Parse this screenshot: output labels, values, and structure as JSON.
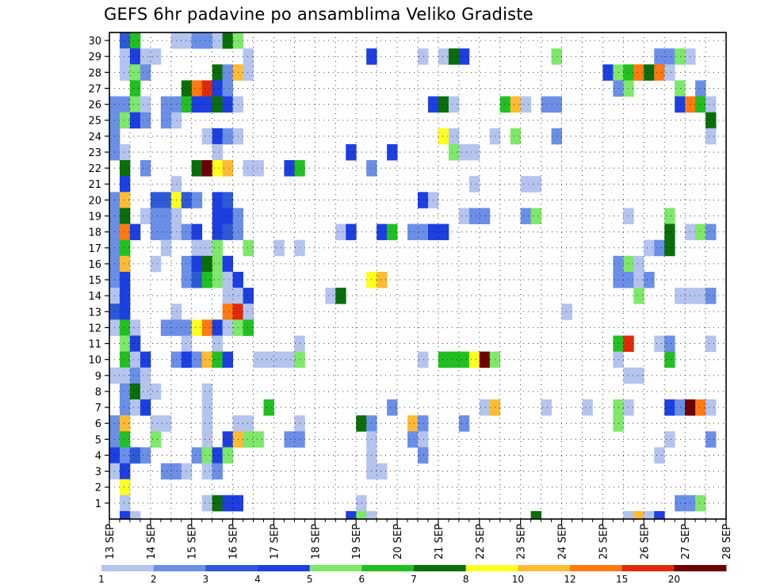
{
  "chart_data": {
    "type": "heatmap",
    "title": "GEFS 6hr padavine po ansamblima Veliko Gradiste",
    "xlabel": "",
    "ylabel": "",
    "x_axis": {
      "type": "time",
      "ticks": [
        "13 SEP",
        "14 SEP",
        "15 SEP",
        "16 SEP",
        "17 SEP",
        "18 SEP",
        "19 SEP",
        "20 SEP",
        "21 SEP",
        "22 SEP",
        "23 SEP",
        "24 SEP",
        "25 SEP",
        "26 SEP",
        "27 SEP",
        "28 SEP"
      ],
      "step_hours": 6
    },
    "y_axis": {
      "label": "",
      "range": [
        0,
        30
      ],
      "ticks": [
        1,
        2,
        3,
        4,
        5,
        6,
        7,
        8,
        9,
        10,
        11,
        12,
        13,
        14,
        15,
        16,
        17,
        18,
        19,
        20,
        21,
        22,
        23,
        24,
        25,
        26,
        27,
        28,
        29,
        30
      ]
    },
    "grid": true,
    "legend": {
      "position": "bottom",
      "labels": [
        "1",
        "2",
        "3",
        "4",
        "5",
        "6",
        "7",
        "8",
        "10",
        "12",
        "15",
        "20"
      ],
      "colors": [
        "#b4c4ee",
        "#6b8fe6",
        "#2f5ad6",
        "#1d3fe0",
        "#7ee86a",
        "#22bf22",
        "#0a6e0a",
        "#ffff22",
        "#ffbb33",
        "#ff7a11",
        "#e02a0a",
        "#6e0000"
      ]
    },
    "colors": [
      "#b4c4ee",
      "#6b8fe6",
      "#2f5ad6",
      "#1d3fe0",
      "#7ee86a",
      "#22bf22",
      "#0a6e0a",
      "#ffff22",
      "#ffbb33",
      "#ff7a11",
      "#e02a0a",
      "#6e0000"
    ],
    "cells": [
      [
        1,
        30,
        2
      ],
      [
        2,
        30,
        5
      ],
      [
        6,
        30,
        0
      ],
      [
        7,
        30,
        0
      ],
      [
        8,
        30,
        1
      ],
      [
        9,
        30,
        1
      ],
      [
        10,
        30,
        0
      ],
      [
        11,
        30,
        6
      ],
      [
        12,
        30,
        4
      ],
      [
        1,
        29,
        0
      ],
      [
        2,
        29,
        3
      ],
      [
        3,
        29,
        0
      ],
      [
        4,
        29,
        0
      ],
      [
        13,
        29,
        0
      ],
      [
        25,
        29,
        3
      ],
      [
        30,
        29,
        0
      ],
      [
        32,
        29,
        0
      ],
      [
        33,
        29,
        6
      ],
      [
        34,
        29,
        3
      ],
      [
        43,
        29,
        4
      ],
      [
        53,
        29,
        1
      ],
      [
        54,
        29,
        1
      ],
      [
        55,
        29,
        4
      ],
      [
        56,
        29,
        0
      ],
      [
        1,
        28,
        0
      ],
      [
        2,
        28,
        4
      ],
      [
        3,
        28,
        1
      ],
      [
        10,
        28,
        6
      ],
      [
        11,
        28,
        1
      ],
      [
        12,
        28,
        8
      ],
      [
        13,
        28,
        0
      ],
      [
        48,
        28,
        3
      ],
      [
        49,
        28,
        4
      ],
      [
        50,
        28,
        5
      ],
      [
        51,
        28,
        9
      ],
      [
        52,
        28,
        6
      ],
      [
        53,
        28,
        9
      ],
      [
        54,
        28,
        0
      ],
      [
        2,
        27,
        5
      ],
      [
        7,
        27,
        6
      ],
      [
        8,
        27,
        9
      ],
      [
        9,
        27,
        10
      ],
      [
        10,
        27,
        3
      ],
      [
        11,
        27,
        1
      ],
      [
        49,
        27,
        1
      ],
      [
        50,
        27,
        4
      ],
      [
        55,
        27,
        4
      ],
      [
        57,
        27,
        1
      ],
      [
        0,
        26,
        1
      ],
      [
        1,
        26,
        1
      ],
      [
        2,
        26,
        4
      ],
      [
        3,
        26,
        0
      ],
      [
        5,
        26,
        1
      ],
      [
        6,
        26,
        1
      ],
      [
        7,
        26,
        5
      ],
      [
        8,
        26,
        3
      ],
      [
        9,
        26,
        3
      ],
      [
        10,
        26,
        6
      ],
      [
        11,
        26,
        3
      ],
      [
        12,
        26,
        0
      ],
      [
        31,
        26,
        3
      ],
      [
        32,
        26,
        6
      ],
      [
        33,
        26,
        0
      ],
      [
        38,
        26,
        5
      ],
      [
        39,
        26,
        8
      ],
      [
        40,
        26,
        0
      ],
      [
        42,
        26,
        1
      ],
      [
        43,
        26,
        1
      ],
      [
        55,
        26,
        3
      ],
      [
        56,
        26,
        9
      ],
      [
        57,
        26,
        5
      ],
      [
        58,
        26,
        0
      ],
      [
        0,
        25,
        1
      ],
      [
        1,
        25,
        4
      ],
      [
        2,
        25,
        3
      ],
      [
        3,
        25,
        1
      ],
      [
        5,
        25,
        1
      ],
      [
        6,
        25,
        0
      ],
      [
        58,
        25,
        6
      ],
      [
        0,
        24,
        1
      ],
      [
        9,
        24,
        0
      ],
      [
        10,
        24,
        3
      ],
      [
        11,
        24,
        1
      ],
      [
        12,
        24,
        0
      ],
      [
        32,
        24,
        7
      ],
      [
        33,
        24,
        0
      ],
      [
        37,
        24,
        0
      ],
      [
        39,
        24,
        4
      ],
      [
        43,
        24,
        1
      ],
      [
        58,
        24,
        0
      ],
      [
        0,
        23,
        1
      ],
      [
        1,
        23,
        0
      ],
      [
        10,
        23,
        0
      ],
      [
        23,
        23,
        3
      ],
      [
        27,
        23,
        3
      ],
      [
        33,
        23,
        4
      ],
      [
        34,
        23,
        0
      ],
      [
        35,
        23,
        0
      ],
      [
        1,
        22,
        6
      ],
      [
        3,
        22,
        1
      ],
      [
        8,
        22,
        6
      ],
      [
        9,
        22,
        11
      ],
      [
        10,
        22,
        7
      ],
      [
        11,
        22,
        8
      ],
      [
        13,
        22,
        0
      ],
      [
        14,
        22,
        0
      ],
      [
        17,
        22,
        3
      ],
      [
        18,
        22,
        5
      ],
      [
        25,
        22,
        1
      ],
      [
        1,
        21,
        3
      ],
      [
        6,
        21,
        0
      ],
      [
        35,
        21,
        0
      ],
      [
        40,
        21,
        0
      ],
      [
        41,
        21,
        0
      ],
      [
        0,
        20,
        1
      ],
      [
        1,
        20,
        8
      ],
      [
        4,
        20,
        2
      ],
      [
        5,
        20,
        2
      ],
      [
        6,
        20,
        7
      ],
      [
        7,
        20,
        2
      ],
      [
        8,
        20,
        1
      ],
      [
        10,
        20,
        3
      ],
      [
        11,
        20,
        2
      ],
      [
        30,
        20,
        3
      ],
      [
        31,
        20,
        0
      ],
      [
        0,
        19,
        1
      ],
      [
        1,
        19,
        6
      ],
      [
        3,
        19,
        0
      ],
      [
        4,
        19,
        1
      ],
      [
        5,
        19,
        1
      ],
      [
        6,
        19,
        0
      ],
      [
        10,
        19,
        3
      ],
      [
        11,
        19,
        3
      ],
      [
        12,
        19,
        1
      ],
      [
        34,
        19,
        0
      ],
      [
        35,
        19,
        1
      ],
      [
        36,
        19,
        1
      ],
      [
        40,
        19,
        1
      ],
      [
        41,
        19,
        4
      ],
      [
        50,
        19,
        0
      ],
      [
        54,
        19,
        4
      ],
      [
        0,
        18,
        1
      ],
      [
        1,
        18,
        9
      ],
      [
        2,
        18,
        3
      ],
      [
        4,
        18,
        1
      ],
      [
        5,
        18,
        1
      ],
      [
        6,
        18,
        0
      ],
      [
        7,
        18,
        1
      ],
      [
        8,
        18,
        3
      ],
      [
        10,
        18,
        3
      ],
      [
        11,
        18,
        2
      ],
      [
        12,
        18,
        1
      ],
      [
        22,
        18,
        0
      ],
      [
        23,
        18,
        3
      ],
      [
        26,
        18,
        3
      ],
      [
        27,
        18,
        5
      ],
      [
        29,
        18,
        1
      ],
      [
        30,
        18,
        1
      ],
      [
        31,
        18,
        3
      ],
      [
        32,
        18,
        3
      ],
      [
        54,
        18,
        6
      ],
      [
        56,
        18,
        0
      ],
      [
        57,
        18,
        4
      ],
      [
        58,
        18,
        1
      ],
      [
        0,
        17,
        1
      ],
      [
        1,
        17,
        5
      ],
      [
        5,
        17,
        0
      ],
      [
        8,
        17,
        0
      ],
      [
        9,
        17,
        0
      ],
      [
        10,
        17,
        4
      ],
      [
        13,
        17,
        4
      ],
      [
        16,
        17,
        0
      ],
      [
        18,
        17,
        0
      ],
      [
        52,
        17,
        0
      ],
      [
        53,
        17,
        1
      ],
      [
        54,
        17,
        6
      ],
      [
        0,
        16,
        1
      ],
      [
        1,
        16,
        8
      ],
      [
        4,
        16,
        0
      ],
      [
        7,
        16,
        1
      ],
      [
        8,
        16,
        3
      ],
      [
        9,
        16,
        6
      ],
      [
        10,
        16,
        4
      ],
      [
        11,
        16,
        3
      ],
      [
        49,
        16,
        1
      ],
      [
        50,
        16,
        4
      ],
      [
        51,
        16,
        0
      ],
      [
        0,
        15,
        1
      ],
      [
        1,
        15,
        3
      ],
      [
        7,
        15,
        1
      ],
      [
        8,
        15,
        2
      ],
      [
        9,
        15,
        5
      ],
      [
        10,
        15,
        4
      ],
      [
        11,
        15,
        0
      ],
      [
        12,
        15,
        3
      ],
      [
        25,
        15,
        7
      ],
      [
        26,
        15,
        8
      ],
      [
        49,
        15,
        1
      ],
      [
        50,
        15,
        1
      ],
      [
        51,
        15,
        0
      ],
      [
        52,
        15,
        1
      ],
      [
        0,
        14,
        0
      ],
      [
        1,
        14,
        3
      ],
      [
        11,
        14,
        0
      ],
      [
        12,
        14,
        0
      ],
      [
        13,
        14,
        3
      ],
      [
        21,
        14,
        0
      ],
      [
        22,
        14,
        6
      ],
      [
        51,
        14,
        4
      ],
      [
        55,
        14,
        0
      ],
      [
        56,
        14,
        0
      ],
      [
        57,
        14,
        0
      ],
      [
        58,
        14,
        1
      ],
      [
        0,
        13,
        2
      ],
      [
        1,
        13,
        3
      ],
      [
        6,
        13,
        0
      ],
      [
        11,
        13,
        9
      ],
      [
        12,
        13,
        10
      ],
      [
        13,
        13,
        0
      ],
      [
        44,
        13,
        0
      ],
      [
        0,
        12,
        0
      ],
      [
        1,
        12,
        5
      ],
      [
        2,
        12,
        0
      ],
      [
        5,
        12,
        1
      ],
      [
        6,
        12,
        1
      ],
      [
        7,
        12,
        1
      ],
      [
        8,
        12,
        7
      ],
      [
        9,
        12,
        9
      ],
      [
        10,
        12,
        3
      ],
      [
        11,
        12,
        0
      ],
      [
        12,
        12,
        4
      ],
      [
        13,
        12,
        5
      ],
      [
        1,
        11,
        4
      ],
      [
        2,
        11,
        3
      ],
      [
        7,
        11,
        0
      ],
      [
        10,
        11,
        0
      ],
      [
        18,
        11,
        0
      ],
      [
        49,
        11,
        5
      ],
      [
        50,
        11,
        10
      ],
      [
        53,
        11,
        0
      ],
      [
        54,
        11,
        1
      ],
      [
        58,
        11,
        0
      ],
      [
        1,
        10,
        5
      ],
      [
        2,
        10,
        0
      ],
      [
        3,
        10,
        3
      ],
      [
        6,
        10,
        1
      ],
      [
        7,
        10,
        3
      ],
      [
        8,
        10,
        1
      ],
      [
        9,
        10,
        8
      ],
      [
        10,
        10,
        5
      ],
      [
        11,
        10,
        3
      ],
      [
        14,
        10,
        0
      ],
      [
        15,
        10,
        0
      ],
      [
        16,
        10,
        0
      ],
      [
        17,
        10,
        0
      ],
      [
        18,
        10,
        4
      ],
      [
        30,
        10,
        0
      ],
      [
        32,
        10,
        5
      ],
      [
        33,
        10,
        5
      ],
      [
        34,
        10,
        5
      ],
      [
        35,
        10,
        7
      ],
      [
        36,
        10,
        11
      ],
      [
        37,
        10,
        4
      ],
      [
        49,
        10,
        0
      ],
      [
        54,
        10,
        5
      ],
      [
        0,
        9,
        0
      ],
      [
        1,
        9,
        0
      ],
      [
        2,
        9,
        1
      ],
      [
        3,
        9,
        0
      ],
      [
        50,
        9,
        0
      ],
      [
        51,
        9,
        0
      ],
      [
        1,
        8,
        1
      ],
      [
        2,
        8,
        6
      ],
      [
        3,
        8,
        0
      ],
      [
        4,
        8,
        0
      ],
      [
        9,
        8,
        0
      ],
      [
        1,
        7,
        1
      ],
      [
        2,
        7,
        0
      ],
      [
        3,
        7,
        3
      ],
      [
        9,
        7,
        0
      ],
      [
        15,
        7,
        5
      ],
      [
        27,
        7,
        1
      ],
      [
        36,
        7,
        0
      ],
      [
        37,
        7,
        8
      ],
      [
        42,
        7,
        0
      ],
      [
        46,
        7,
        0
      ],
      [
        49,
        7,
        4
      ],
      [
        50,
        7,
        0
      ],
      [
        54,
        7,
        3
      ],
      [
        55,
        7,
        1
      ],
      [
        56,
        7,
        11
      ],
      [
        57,
        7,
        9
      ],
      [
        58,
        7,
        0
      ],
      [
        0,
        6,
        1
      ],
      [
        1,
        6,
        8
      ],
      [
        4,
        6,
        0
      ],
      [
        5,
        6,
        0
      ],
      [
        9,
        6,
        0
      ],
      [
        12,
        6,
        0
      ],
      [
        13,
        6,
        0
      ],
      [
        18,
        6,
        0
      ],
      [
        24,
        6,
        6
      ],
      [
        25,
        6,
        1
      ],
      [
        29,
        6,
        8
      ],
      [
        30,
        6,
        1
      ],
      [
        34,
        6,
        1
      ],
      [
        49,
        6,
        4
      ],
      [
        0,
        5,
        1
      ],
      [
        1,
        5,
        5
      ],
      [
        4,
        5,
        4
      ],
      [
        9,
        5,
        0
      ],
      [
        11,
        5,
        3
      ],
      [
        12,
        5,
        8
      ],
      [
        13,
        5,
        4
      ],
      [
        14,
        5,
        4
      ],
      [
        17,
        5,
        1
      ],
      [
        18,
        5,
        1
      ],
      [
        25,
        5,
        0
      ],
      [
        29,
        5,
        1
      ],
      [
        30,
        5,
        0
      ],
      [
        54,
        5,
        0
      ],
      [
        58,
        5,
        1
      ],
      [
        0,
        4,
        3
      ],
      [
        1,
        4,
        1
      ],
      [
        2,
        4,
        2
      ],
      [
        3,
        4,
        1
      ],
      [
        8,
        4,
        1
      ],
      [
        9,
        4,
        4
      ],
      [
        10,
        4,
        3
      ],
      [
        11,
        4,
        4
      ],
      [
        25,
        4,
        0
      ],
      [
        30,
        4,
        1
      ],
      [
        53,
        4,
        0
      ],
      [
        0,
        3,
        0
      ],
      [
        1,
        3,
        3
      ],
      [
        5,
        3,
        1
      ],
      [
        6,
        3,
        1
      ],
      [
        7,
        3,
        0
      ],
      [
        9,
        3,
        0
      ],
      [
        10,
        3,
        1
      ],
      [
        25,
        3,
        0
      ],
      [
        26,
        3,
        0
      ],
      [
        1,
        2,
        7
      ],
      [
        1,
        1,
        0
      ],
      [
        9,
        1,
        0
      ],
      [
        10,
        1,
        6
      ],
      [
        11,
        1,
        3
      ],
      [
        12,
        1,
        3
      ],
      [
        24,
        1,
        0
      ],
      [
        55,
        1,
        1
      ],
      [
        56,
        1,
        1
      ],
      [
        57,
        1,
        4
      ],
      [
        1,
        0,
        3
      ],
      [
        2,
        0,
        0
      ],
      [
        23,
        0,
        3
      ],
      [
        24,
        0,
        4
      ],
      [
        25,
        0,
        0
      ],
      [
        41,
        0,
        6
      ],
      [
        50,
        0,
        0
      ],
      [
        51,
        0,
        8
      ],
      [
        52,
        0,
        0
      ],
      [
        53,
        0,
        3
      ]
    ]
  }
}
